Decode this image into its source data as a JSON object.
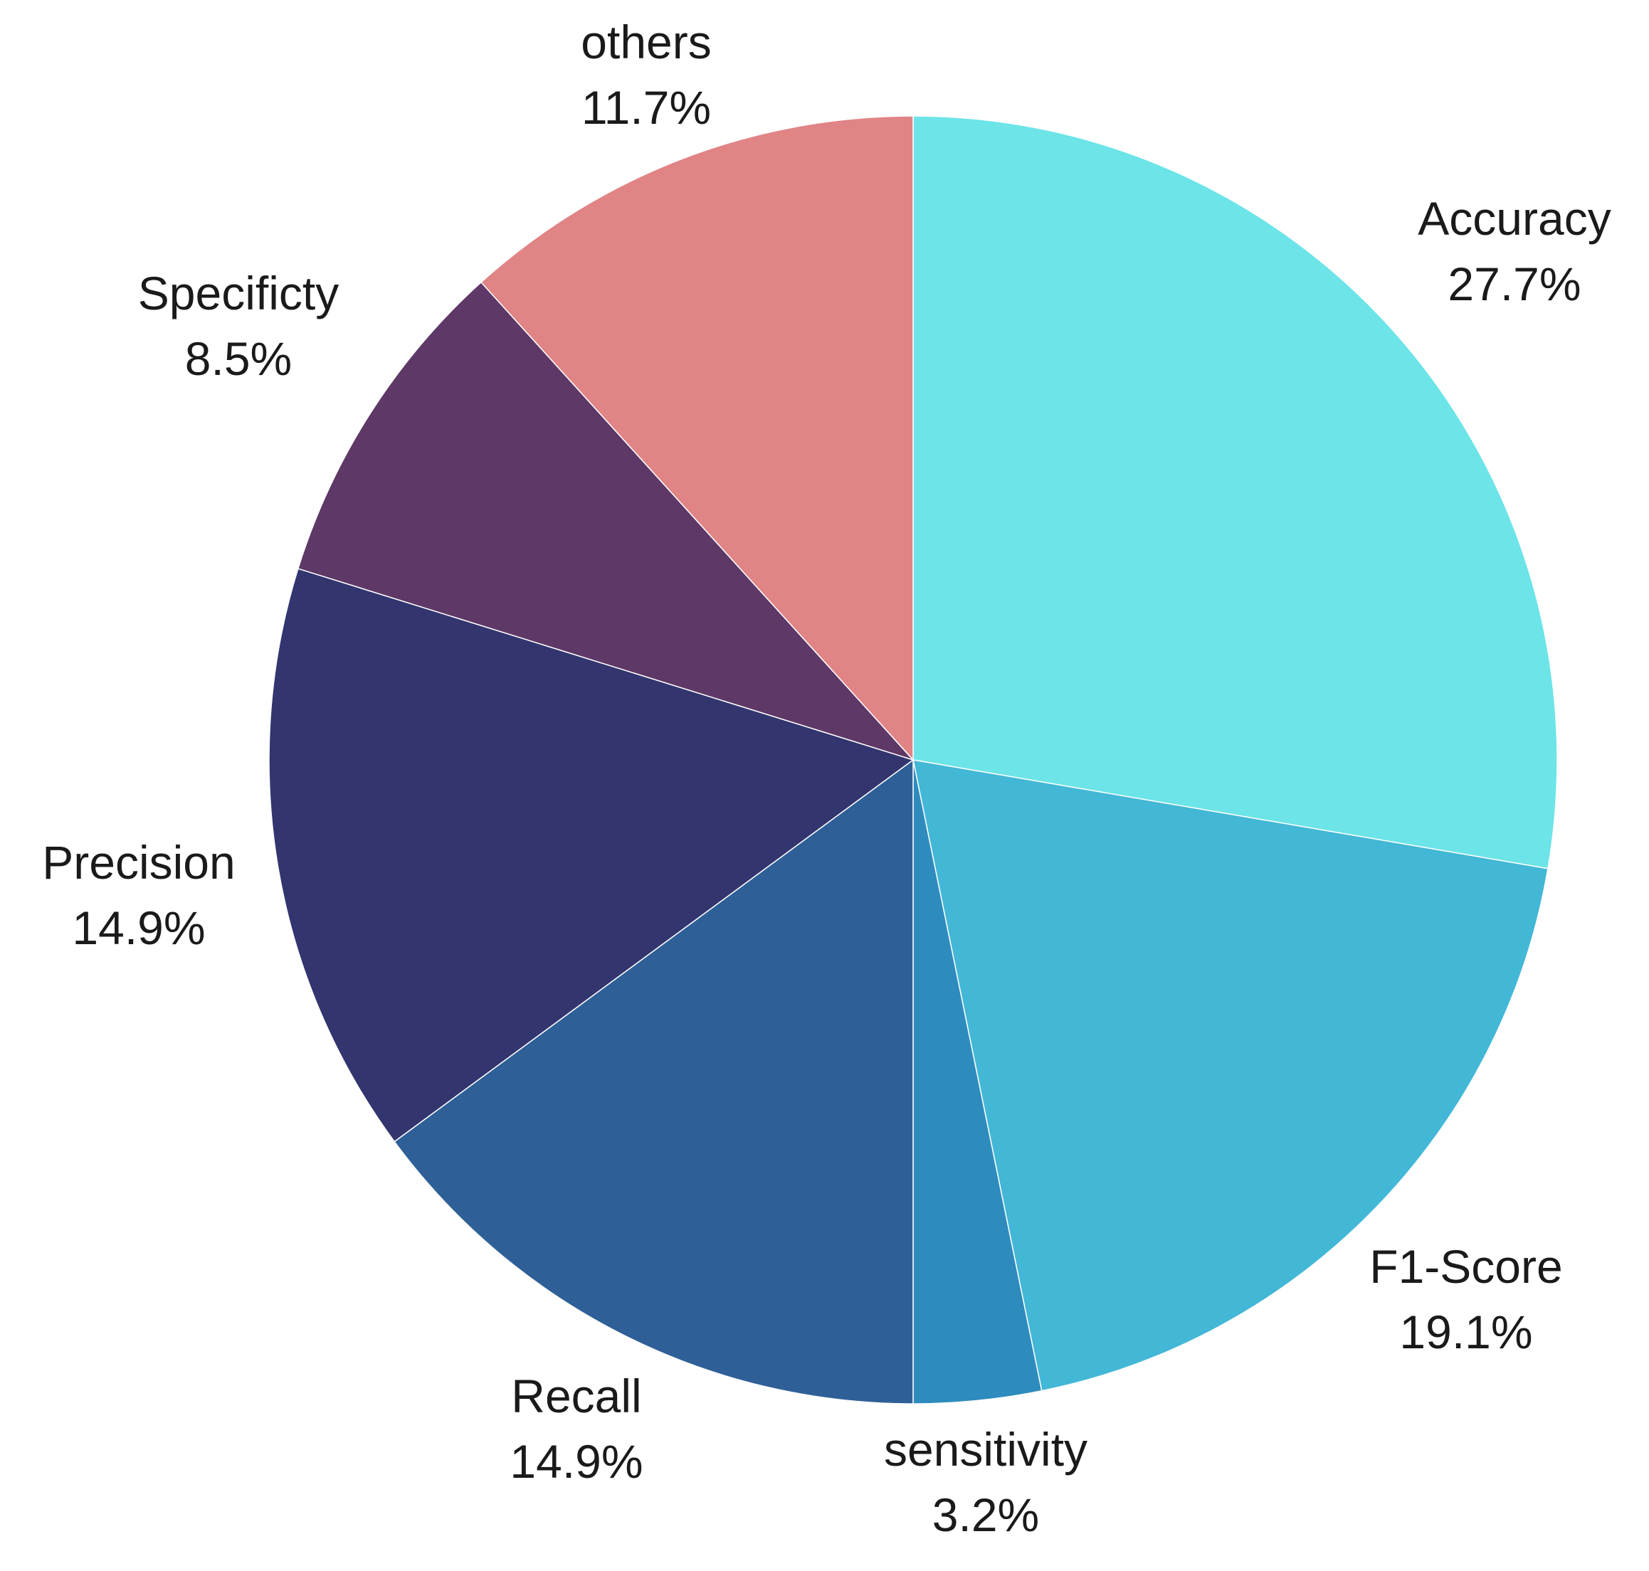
{
  "chart_data": {
    "type": "pie",
    "title": "",
    "start": "top",
    "direction": "clockwise",
    "slices": [
      {
        "label": "Accuracy",
        "value": 27.7,
        "value_text": "27.7%",
        "color": "#6ce4e8"
      },
      {
        "label": "F1-Score",
        "value": 19.1,
        "value_text": "19.1%",
        "color": "#43b7d6"
      },
      {
        "label": "sensitivity",
        "value": 3.2,
        "value_text": "3.2%",
        "color": "#2e8bbd"
      },
      {
        "label": "Recall",
        "value": 14.9,
        "value_text": "14.9%",
        "color": "#2f5f97"
      },
      {
        "label": "Precision",
        "value": 14.9,
        "value_text": "14.9%",
        "color": "#32356e"
      },
      {
        "label": "Specificty",
        "value": 8.5,
        "value_text": "8.5%",
        "color": "#5e3866"
      },
      {
        "label": "others",
        "value": 11.7,
        "value_text": "11.7%",
        "color": "#e08486"
      }
    ]
  }
}
